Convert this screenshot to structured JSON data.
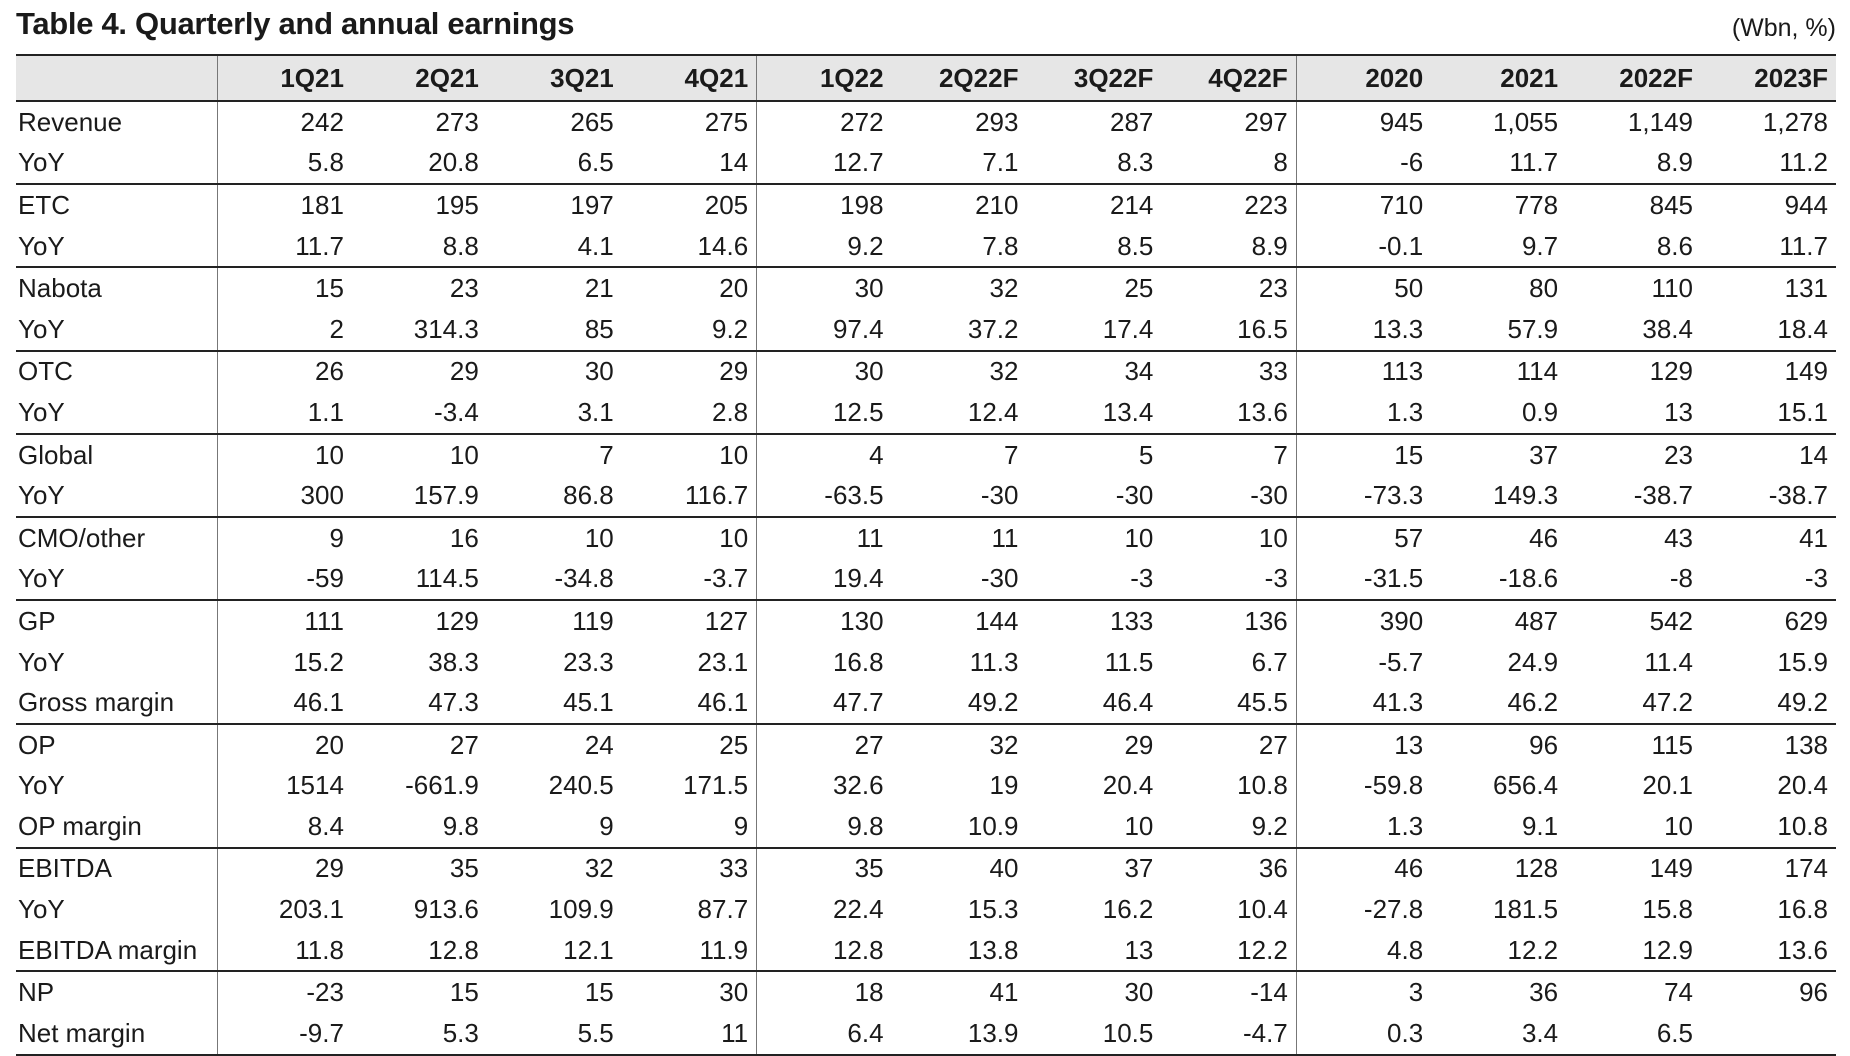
{
  "title": "Table 4. Quarterly and annual earnings",
  "unit": "(Wbn, %)",
  "columns": [
    "1Q21",
    "2Q21",
    "3Q21",
    "4Q21",
    "1Q22",
    "2Q22F",
    "3Q22F",
    "4Q22F",
    "2020",
    "2021",
    "2022F",
    "2023F"
  ],
  "rows": [
    {
      "label": "Revenue",
      "values": [
        "242",
        "273",
        "265",
        "275",
        "272",
        "293",
        "287",
        "297",
        "945",
        "1,055",
        "1,149",
        "1,278"
      ]
    },
    {
      "label": "YoY",
      "values": [
        "5.8",
        "20.8",
        "6.5",
        "14",
        "12.7",
        "7.1",
        "8.3",
        "8",
        "-6",
        "11.7",
        "8.9",
        "11.2"
      ]
    },
    {
      "label": "ETC",
      "values": [
        "181",
        "195",
        "197",
        "205",
        "198",
        "210",
        "214",
        "223",
        "710",
        "778",
        "845",
        "944"
      ]
    },
    {
      "label": "YoY",
      "values": [
        "11.7",
        "8.8",
        "4.1",
        "14.6",
        "9.2",
        "7.8",
        "8.5",
        "8.9",
        "-0.1",
        "9.7",
        "8.6",
        "11.7"
      ]
    },
    {
      "label": "Nabota",
      "values": [
        "15",
        "23",
        "21",
        "20",
        "30",
        "32",
        "25",
        "23",
        "50",
        "80",
        "110",
        "131"
      ]
    },
    {
      "label": "YoY",
      "values": [
        "2",
        "314.3",
        "85",
        "9.2",
        "97.4",
        "37.2",
        "17.4",
        "16.5",
        "13.3",
        "57.9",
        "38.4",
        "18.4"
      ]
    },
    {
      "label": "OTC",
      "values": [
        "26",
        "29",
        "30",
        "29",
        "30",
        "32",
        "34",
        "33",
        "113",
        "114",
        "129",
        "149"
      ]
    },
    {
      "label": "YoY",
      "values": [
        "1.1",
        "-3.4",
        "3.1",
        "2.8",
        "12.5",
        "12.4",
        "13.4",
        "13.6",
        "1.3",
        "0.9",
        "13",
        "15.1"
      ]
    },
    {
      "label": "Global",
      "values": [
        "10",
        "10",
        "7",
        "10",
        "4",
        "7",
        "5",
        "7",
        "15",
        "37",
        "23",
        "14"
      ]
    },
    {
      "label": "YoY",
      "values": [
        "300",
        "157.9",
        "86.8",
        "116.7",
        "-63.5",
        "-30",
        "-30",
        "-30",
        "-73.3",
        "149.3",
        "-38.7",
        "-38.7"
      ]
    },
    {
      "label": "CMO/other",
      "values": [
        "9",
        "16",
        "10",
        "10",
        "11",
        "11",
        "10",
        "10",
        "57",
        "46",
        "43",
        "41"
      ]
    },
    {
      "label": "YoY",
      "values": [
        "-59",
        "114.5",
        "-34.8",
        "-3.7",
        "19.4",
        "-30",
        "-3",
        "-3",
        "-31.5",
        "-18.6",
        "-8",
        "-3"
      ]
    },
    {
      "label": "GP",
      "values": [
        "111",
        "129",
        "119",
        "127",
        "130",
        "144",
        "133",
        "136",
        "390",
        "487",
        "542",
        "629"
      ]
    },
    {
      "label": "YoY",
      "values": [
        "15.2",
        "38.3",
        "23.3",
        "23.1",
        "16.8",
        "11.3",
        "11.5",
        "6.7",
        "-5.7",
        "24.9",
        "11.4",
        "15.9"
      ]
    },
    {
      "label": "Gross margin",
      "values": [
        "46.1",
        "47.3",
        "45.1",
        "46.1",
        "47.7",
        "49.2",
        "46.4",
        "45.5",
        "41.3",
        "46.2",
        "47.2",
        "49.2"
      ]
    },
    {
      "label": "OP",
      "values": [
        "20",
        "27",
        "24",
        "25",
        "27",
        "32",
        "29",
        "27",
        "13",
        "96",
        "115",
        "138"
      ]
    },
    {
      "label": "YoY",
      "values": [
        "1514",
        "-661.9",
        "240.5",
        "171.5",
        "32.6",
        "19",
        "20.4",
        "10.8",
        "-59.8",
        "656.4",
        "20.1",
        "20.4"
      ]
    },
    {
      "label": "OP margin",
      "values": [
        "8.4",
        "9.8",
        "9",
        "9",
        "9.8",
        "10.9",
        "10",
        "9.2",
        "1.3",
        "9.1",
        "10",
        "10.8"
      ]
    },
    {
      "label": "EBITDA",
      "values": [
        "29",
        "35",
        "32",
        "33",
        "35",
        "40",
        "37",
        "36",
        "46",
        "128",
        "149",
        "174"
      ]
    },
    {
      "label": "YoY",
      "values": [
        "203.1",
        "913.6",
        "109.9",
        "87.7",
        "22.4",
        "15.3",
        "16.2",
        "10.4",
        "-27.8",
        "181.5",
        "15.8",
        "16.8"
      ]
    },
    {
      "label": "EBITDA margin",
      "values": [
        "11.8",
        "12.8",
        "12.1",
        "11.9",
        "12.8",
        "13.8",
        "13",
        "12.2",
        "4.8",
        "12.2",
        "12.9",
        "13.6"
      ]
    },
    {
      "label": "NP",
      "values": [
        "-23",
        "15",
        "15",
        "30",
        "18",
        "41",
        "30",
        "-14",
        "3",
        "36",
        "74",
        "96"
      ]
    },
    {
      "label": "Net margin",
      "values": [
        "-9.7",
        "5.3",
        "5.5",
        "11",
        "6.4",
        "13.9",
        "10.5",
        "-4.7",
        "0.3",
        "3.4",
        "6.5",
        ""
      ]
    }
  ]
}
